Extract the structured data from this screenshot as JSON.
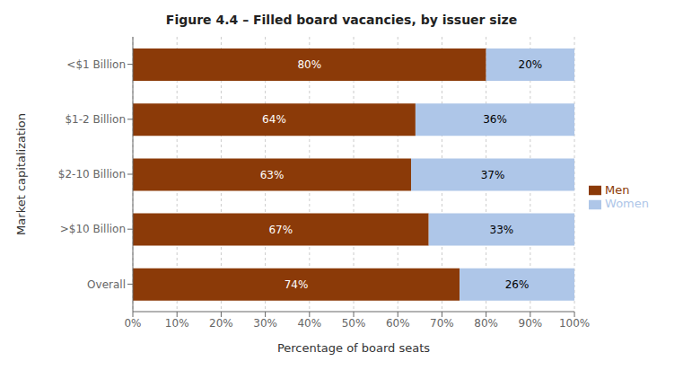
{
  "chart_data": {
    "type": "bar",
    "orientation": "horizontal",
    "stacked": true,
    "title": "Figure 4.4 – Filled board vacancies, by issuer size",
    "categories": [
      "<$1 Billion",
      "$1-2 Billion",
      "$2-10 Billion",
      ">$10 Billion",
      "Overall"
    ],
    "series": [
      {
        "name": "Men",
        "color": "#8B3A08",
        "values": [
          80,
          64,
          63,
          67,
          74
        ],
        "value_labels": [
          "80%",
          "64%",
          "63%",
          "67%",
          "74%"
        ]
      },
      {
        "name": "Women",
        "color": "#AEC6E8",
        "values": [
          20,
          36,
          37,
          33,
          26
        ],
        "value_labels": [
          "20%",
          "36%",
          "37%",
          "33%",
          "26%"
        ]
      }
    ],
    "xlabel": "Percentage of board seats",
    "ylabel": "Market capitalization",
    "xlim": [
      0,
      100
    ],
    "xticks": [
      {
        "value": 0,
        "label": "0%"
      },
      {
        "value": 10,
        "label": "10%"
      },
      {
        "value": 20,
        "label": "20%"
      },
      {
        "value": 30,
        "label": "30%"
      },
      {
        "value": 40,
        "label": "40%"
      },
      {
        "value": 50,
        "label": "50%"
      },
      {
        "value": 60,
        "label": "60%"
      },
      {
        "value": 70,
        "label": "70%"
      },
      {
        "value": 80,
        "label": "80%"
      },
      {
        "value": 90,
        "label": "90%"
      },
      {
        "value": 100,
        "label": "100%"
      }
    ],
    "grid": true,
    "legend": "right",
    "data_labels": true
  }
}
